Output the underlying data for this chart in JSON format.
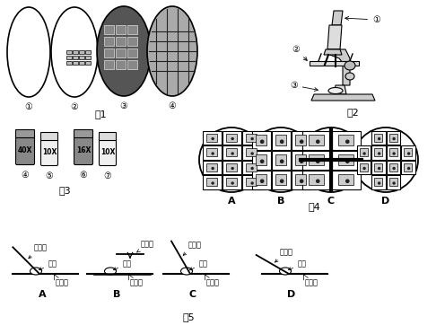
{
  "bg_color": "#ffffff",
  "fig1_label": "图1",
  "fig2_label": "图2",
  "fig3_label": "图3",
  "fig4_label": "图4",
  "fig5_label": "图5"
}
